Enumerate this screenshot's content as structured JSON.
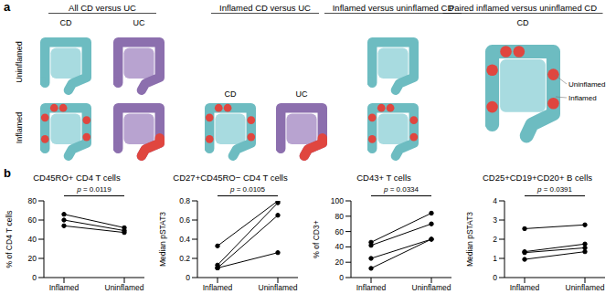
{
  "panel_a": {
    "label": "a",
    "row_labels": [
      "Uninflamed",
      "Inflamed"
    ],
    "groups": [
      {
        "title": "All CD versus UC",
        "columns": [
          "CD",
          "UC"
        ]
      },
      {
        "title": "Inflamed CD versus UC",
        "columns": [
          "CD",
          "UC"
        ]
      },
      {
        "title": "Inflamed versus uninflamed CD",
        "columns": []
      },
      {
        "title": "Paired inflamed versus uninflamed CD",
        "columns": [
          "CD"
        ]
      }
    ],
    "callouts": [
      "Uninflamed",
      "Inflamed"
    ]
  },
  "panel_b_label": "b",
  "chart_data": [
    {
      "type": "line",
      "title": "CD45RO+ CD4 T cells",
      "ylabel": "% of CD4 T cells",
      "categories": [
        "Inflamed",
        "Uninflamed"
      ],
      "series": [
        {
          "color": "#000000",
          "marker": "circle",
          "values": [
            66,
            52
          ]
        },
        {
          "color": "#000000",
          "marker": "circle",
          "values": [
            60,
            49
          ]
        },
        {
          "color": "#000000",
          "marker": "circle",
          "values": [
            54,
            47
          ]
        }
      ],
      "ylim": [
        0,
        80
      ],
      "yticks": [
        0,
        20,
        40,
        60,
        80
      ],
      "annotation": "p = 0.0119"
    },
    {
      "type": "line",
      "title": "CD27+CD45RO− CD4 T cells",
      "ylabel": "Median pSTAT3",
      "categories": [
        "Inflamed",
        "Uninflamed"
      ],
      "series": [
        {
          "color": "#000000",
          "marker": "circle",
          "values": [
            0.33,
            0.8
          ]
        },
        {
          "color": "#000000",
          "marker": "circle",
          "values": [
            0.13,
            0.78
          ]
        },
        {
          "color": "#000000",
          "marker": "circle",
          "values": [
            0.1,
            0.65
          ]
        },
        {
          "color": "#000000",
          "marker": "circle",
          "values": [
            0.1,
            0.26
          ]
        }
      ],
      "ylim": [
        0,
        0.8
      ],
      "yticks": [
        0,
        0.2,
        0.4,
        0.6,
        0.8
      ],
      "annotation": "p = 0.0105"
    },
    {
      "type": "line",
      "title": "CD43+ T cells",
      "ylabel": "% of CD3+",
      "categories": [
        "Inflamed",
        "Uninflamed"
      ],
      "series": [
        {
          "color": "#000000",
          "marker": "circle",
          "values": [
            46,
            84
          ]
        },
        {
          "color": "#000000",
          "marker": "circle",
          "values": [
            42,
            70
          ]
        },
        {
          "color": "#000000",
          "marker": "circle",
          "values": [
            25,
            50
          ]
        },
        {
          "color": "#000000",
          "marker": "circle",
          "values": [
            12,
            50
          ]
        }
      ],
      "ylim": [
        0,
        100
      ],
      "yticks": [
        0,
        20,
        40,
        60,
        80,
        100
      ],
      "annotation": "p = 0.0334"
    },
    {
      "type": "line",
      "title": "CD25+CD19+CD20+ B cells",
      "ylabel": "Median pSTAT3",
      "categories": [
        "Inflamed",
        "Uninflamed"
      ],
      "series": [
        {
          "color": "#000000",
          "marker": "circle",
          "values": [
            2.55,
            2.75
          ]
        },
        {
          "color": "#000000",
          "marker": "circle",
          "values": [
            1.35,
            1.75
          ]
        },
        {
          "color": "#000000",
          "marker": "circle",
          "values": [
            1.3,
            1.55
          ]
        },
        {
          "color": "#000000",
          "marker": "circle",
          "values": [
            0.95,
            1.35
          ]
        }
      ],
      "ylim": [
        0,
        4
      ],
      "yticks": [
        0,
        1,
        2,
        3,
        4
      ],
      "annotation": "p = 0.0391"
    }
  ]
}
